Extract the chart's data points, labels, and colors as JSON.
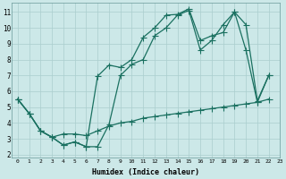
{
  "xlabel": "Humidex (Indice chaleur)",
  "bg_color": "#cce8e8",
  "grid_color": "#aacece",
  "line_color": "#1a7060",
  "xlim": [
    -0.5,
    23
  ],
  "ylim": [
    1.8,
    11.6
  ],
  "yticks": [
    2,
    3,
    4,
    5,
    6,
    7,
    8,
    9,
    10,
    11
  ],
  "xticks": [
    0,
    1,
    2,
    3,
    4,
    5,
    6,
    7,
    8,
    9,
    10,
    11,
    12,
    13,
    14,
    15,
    16,
    17,
    18,
    19,
    20,
    21,
    22,
    23
  ],
  "line1_x": [
    0,
    1,
    2,
    3,
    4,
    5,
    6,
    7,
    8,
    9,
    10,
    11,
    12,
    13,
    14,
    15,
    16,
    17,
    18,
    19,
    20,
    21,
    22
  ],
  "line1_y": [
    5.5,
    4.6,
    3.5,
    3.1,
    2.6,
    2.8,
    2.5,
    2.5,
    3.9,
    7.0,
    7.7,
    8.0,
    9.5,
    10.0,
    10.8,
    11.1,
    8.6,
    9.2,
    10.2,
    11.0,
    8.6,
    5.3,
    7.0
  ],
  "line2_x": [
    0,
    1,
    2,
    3,
    4,
    5,
    6,
    7,
    8,
    9,
    10,
    11,
    12,
    13,
    14,
    15,
    16,
    17,
    18,
    19,
    20,
    21,
    22
  ],
  "line2_y": [
    5.5,
    4.6,
    3.5,
    3.1,
    2.6,
    2.8,
    2.5,
    6.95,
    7.65,
    7.5,
    8.0,
    9.4,
    10.0,
    10.8,
    10.85,
    11.2,
    9.2,
    9.5,
    9.7,
    11.0,
    10.2,
    5.4,
    7.0
  ],
  "line3_x": [
    0,
    1,
    2,
    3,
    4,
    5,
    6,
    7,
    8,
    9,
    10,
    11,
    12,
    13,
    14,
    15,
    16,
    17,
    18,
    19,
    20,
    21,
    22
  ],
  "line3_y": [
    5.5,
    4.6,
    3.5,
    3.1,
    3.3,
    3.3,
    3.2,
    3.5,
    3.8,
    4.0,
    4.1,
    4.3,
    4.4,
    4.5,
    4.6,
    4.7,
    4.8,
    4.9,
    5.0,
    5.1,
    5.2,
    5.3,
    5.5
  ]
}
